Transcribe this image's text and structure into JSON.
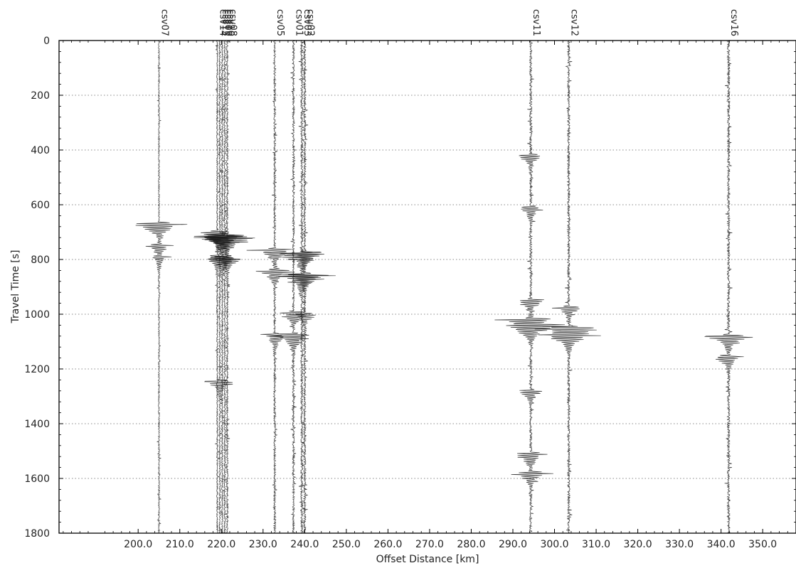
{
  "chart_data": {
    "type": "seismic-record-section",
    "xlabel": "Offset Distance [km]",
    "ylabel": "Travel Time [s]",
    "xlim": [
      181.0,
      358.0
    ],
    "ylim": [
      1800,
      0
    ],
    "y_inverted": true,
    "grid": "horizontal-dotted",
    "x_ticks": [
      "200.0",
      "210.0",
      "220.0",
      "230.0",
      "240.0",
      "250.0",
      "260.0",
      "270.0",
      "280.0",
      "290.0",
      "300.0",
      "310.0",
      "320.0",
      "330.0",
      "340.0",
      "350.0"
    ],
    "y_ticks": [
      "0",
      "200",
      "400",
      "600",
      "800",
      "1000",
      "1200",
      "1400",
      "1600",
      "1800"
    ],
    "stations": [
      {
        "name": "csv07",
        "offset_km": 205.0,
        "events": [
          {
            "t": 670,
            "amp": 1.0
          },
          {
            "t": 750,
            "amp": 0.45
          },
          {
            "t": 790,
            "amp": 0.3
          }
        ]
      },
      {
        "name": "csv14",
        "offset_km": 219.0,
        "events": [
          {
            "t": 700,
            "amp": 0.8
          },
          {
            "t": 790,
            "amp": 0.5
          }
        ]
      },
      {
        "name": "csv15",
        "offset_km": 219.6,
        "events": [
          {
            "t": 710,
            "amp": 0.9
          },
          {
            "t": 1245,
            "amp": 0.6
          }
        ]
      },
      {
        "name": "csv09",
        "offset_km": 220.2,
        "events": [
          {
            "t": 715,
            "amp": 1.0
          },
          {
            "t": 795,
            "amp": 0.6
          }
        ]
      },
      {
        "name": "csv10",
        "offset_km": 220.8,
        "events": [
          {
            "t": 720,
            "amp": 0.9
          },
          {
            "t": 790,
            "amp": 0.5
          }
        ]
      },
      {
        "name": "csv08",
        "offset_km": 221.4,
        "events": [
          {
            "t": 720,
            "amp": 1.2
          },
          {
            "t": 800,
            "amp": 0.5
          }
        ]
      },
      {
        "name": "csv05",
        "offset_km": 232.8,
        "events": [
          {
            "t": 765,
            "amp": 0.8
          },
          {
            "t": 840,
            "amp": 0.7
          },
          {
            "t": 1075,
            "amp": 0.5
          }
        ]
      },
      {
        "name": "csv01",
        "offset_km": 237.3,
        "events": [
          {
            "t": 995,
            "amp": 0.6
          },
          {
            "t": 1075,
            "amp": 0.9
          }
        ]
      },
      {
        "name": "csv03",
        "offset_km": 239.3,
        "events": [
          {
            "t": 780,
            "amp": 1.1
          },
          {
            "t": 860,
            "amp": 1.2
          }
        ]
      },
      {
        "name": "csv02",
        "offset_km": 240.0,
        "events": [
          {
            "t": 775,
            "amp": 0.8
          },
          {
            "t": 855,
            "amp": 0.9
          },
          {
            "t": 1000,
            "amp": 0.5
          }
        ]
      },
      {
        "name": "csv11",
        "offset_km": 294.3,
        "events": [
          {
            "t": 420,
            "amp": 0.5
          },
          {
            "t": 610,
            "amp": 0.5
          },
          {
            "t": 950,
            "amp": 0.6
          },
          {
            "t": 1020,
            "amp": 1.2
          },
          {
            "t": 1040,
            "amp": 0.9
          },
          {
            "t": 1280,
            "amp": 0.5
          },
          {
            "t": 1510,
            "amp": 0.7
          },
          {
            "t": 1580,
            "amp": 0.7
          }
        ]
      },
      {
        "name": "csv12",
        "offset_km": 303.4,
        "events": [
          {
            "t": 975,
            "amp": 0.5
          },
          {
            "t": 1050,
            "amp": 1.3
          },
          {
            "t": 1075,
            "amp": 0.8
          }
        ]
      },
      {
        "name": "csv16",
        "offset_km": 341.8,
        "events": [
          {
            "t": 1080,
            "amp": 1.0
          },
          {
            "t": 1155,
            "amp": 0.6
          }
        ]
      }
    ]
  }
}
